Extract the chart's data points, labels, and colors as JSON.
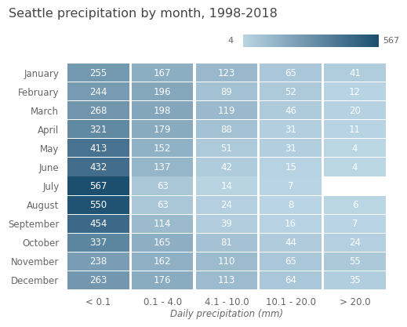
{
  "title": "Seattle precipitation by month, 1998-2018",
  "months": [
    "January",
    "February",
    "March",
    "April",
    "May",
    "June",
    "July",
    "August",
    "September",
    "October",
    "November",
    "December"
  ],
  "categories": [
    "< 0.1",
    "0.1 - 4.0",
    "4.1 - 10.0",
    "10.1 - 20.0",
    "> 20.0"
  ],
  "xlabel": "Daily precipitation (mm)",
  "values": [
    [
      255,
      167,
      123,
      65,
      41
    ],
    [
      244,
      196,
      89,
      52,
      12
    ],
    [
      268,
      198,
      119,
      46,
      20
    ],
    [
      321,
      179,
      88,
      31,
      11
    ],
    [
      413,
      152,
      51,
      31,
      4
    ],
    [
      432,
      137,
      42,
      15,
      4
    ],
    [
      567,
      63,
      14,
      7,
      null
    ],
    [
      550,
      63,
      24,
      8,
      6
    ],
    [
      454,
      114,
      39,
      16,
      7
    ],
    [
      337,
      165,
      81,
      44,
      24
    ],
    [
      238,
      162,
      110,
      65,
      55
    ],
    [
      263,
      176,
      113,
      64,
      35
    ]
  ],
  "colorbar_min": 4,
  "colorbar_max": 567,
  "color_light": "#bad5e4",
  "color_dark": "#1c4e70",
  "text_color": "#ffffff",
  "bg_color": "#ffffff",
  "title_fontsize": 11.5,
  "label_fontsize": 8.5,
  "cell_fontsize": 8.5,
  "month_fontsize": 8.5,
  "cb_label_fontsize": 8.0
}
